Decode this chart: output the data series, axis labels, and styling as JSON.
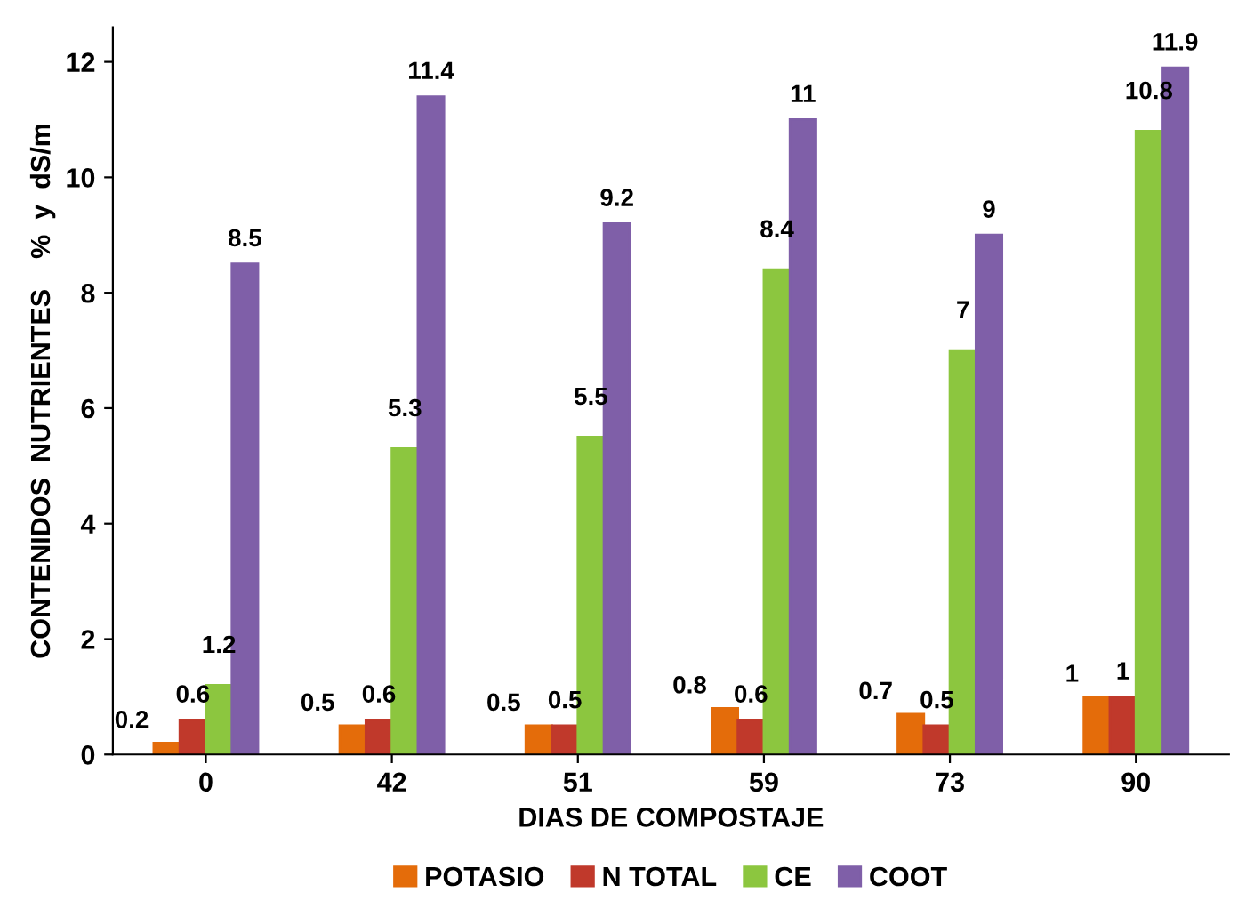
{
  "chart_data": {
    "type": "bar",
    "xlabel": "DIAS DE COMPOSTAJE",
    "ylabel": "CONTENIDOS  NUTRIENTES    %  y  dS/m",
    "categories": [
      "0",
      "42",
      "51",
      "59",
      "73",
      "90"
    ],
    "series": [
      {
        "name": "POTASIO",
        "color": "#e46c0a",
        "values": [
          0.2,
          0.5,
          0.5,
          0.8,
          0.7,
          1
        ]
      },
      {
        "name": "N TOTAL",
        "color": "#c0392b",
        "values": [
          0.6,
          0.6,
          0.5,
          0.6,
          0.5,
          1
        ]
      },
      {
        "name": "CE",
        "color": "#8cc63f",
        "values": [
          1.2,
          5.3,
          5.5,
          8.4,
          7,
          10.8
        ]
      },
      {
        "name": "COOT",
        "color": "#7f5fa8",
        "values": [
          8.5,
          11.4,
          9.2,
          11,
          9,
          11.9
        ]
      }
    ],
    "ylim": [
      0,
      12.6
    ],
    "yticks": [
      0,
      2,
      4,
      6,
      8,
      10,
      12
    ],
    "data_labels": true,
    "legend": "bottom",
    "grid": false
  }
}
